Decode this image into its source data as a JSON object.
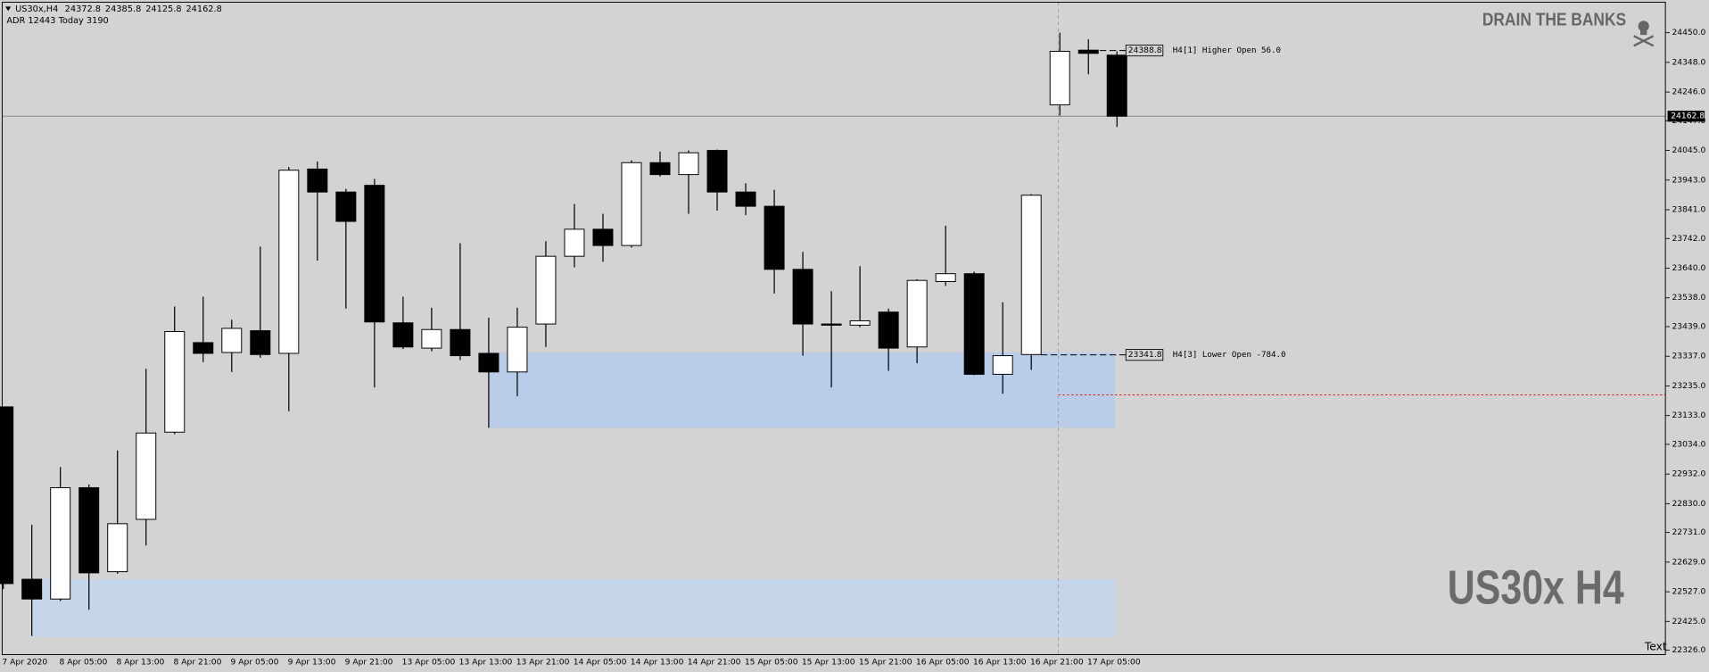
{
  "chart_data": {
    "type": "candlestick",
    "symbol": "US30x,H4",
    "header_extra": "ADR 12443  Today 3190",
    "brand": "DRAIN THE BANKS",
    "watermark": "US30x H4",
    "corner_text": "Text",
    "colors": {
      "up": "#ffffff",
      "down": "#000000",
      "outline": "#000000"
    },
    "categories": [
      "7 Apr 2020",
      null,
      "8 Apr 05:00",
      null,
      "8 Apr 13:00",
      null,
      "8 Apr 21:00",
      null,
      "9 Apr 05:00",
      null,
      "9 Apr 13:00",
      null,
      "9 Apr 21:00",
      null,
      "13 Apr 05:00",
      null,
      "13 Apr 13:00",
      null,
      "13 Apr 21:00",
      null,
      "14 Apr 05:00",
      null,
      "14 Apr 13:00",
      null,
      "14 Apr 21:00",
      null,
      "15 Apr 05:00",
      null,
      "15 Apr 13:00",
      null,
      "15 Apr 21:00",
      null,
      "16 Apr 05:00",
      null,
      "16 Apr 13:00",
      null,
      "16 Apr 21:00",
      null,
      "17 Apr 05:00",
      null
    ],
    "open": [
      23163,
      22570,
      22502,
      22885,
      22596,
      22776,
      23076,
      23384,
      23350,
      23425,
      23347,
      23981,
      23902,
      23925,
      23452,
      23365,
      23429,
      23347,
      23283,
      23448,
      23681,
      23774,
      23718,
      24003,
      23962,
      24045,
      23902,
      23853,
      23636,
      23448,
      23444,
      23489,
      23369,
      23594,
      23621,
      23275,
      23343,
      24202,
      24390,
      24372.8
    ],
    "high": [
      23163,
      22757,
      22956,
      22896,
      23013,
      23294,
      23508,
      23542,
      23463,
      23714,
      23988,
      24007,
      23913,
      23947,
      23542,
      23504,
      23726,
      23470,
      23504,
      23733,
      23861,
      23827,
      24011,
      24041,
      24045,
      24048,
      23932,
      23910,
      23696,
      23561,
      23647,
      23501,
      23602,
      23786,
      23628,
      23523,
      23895,
      24450,
      24427,
      24385.8
    ],
    "low": [
      22536,
      22375,
      22495,
      22465,
      22589,
      22686,
      23069,
      23317,
      23283,
      23332,
      23148,
      23666,
      23501,
      23230,
      23362,
      23354,
      23324,
      23091,
      23200,
      23369,
      23643,
      23662,
      23711,
      23955,
      23827,
      23838,
      23823,
      23553,
      23339,
      23230,
      23437,
      23287,
      23313,
      23579,
      23272,
      23208,
      23290,
      24165,
      24307,
      24125.8
    ],
    "close": [
      22555,
      22502,
      22885,
      22592,
      22761,
      23073,
      23422,
      23347,
      23433,
      23343,
      23977,
      23902,
      23801,
      23455,
      23369,
      23429,
      23339,
      23283,
      23437,
      23681,
      23774,
      23718,
      24003,
      23962,
      24037,
      23902,
      23853,
      23636,
      23448,
      23444,
      23459,
      23365,
      23598,
      23621,
      23275,
      23339,
      23891,
      24386,
      24379,
      24162.8
    ],
    "ylim": [
      22311,
      24555
    ],
    "yticks": [
      {
        "value": 24450,
        "label": "24450.0"
      },
      {
        "value": 24348,
        "label": "24348.0"
      },
      {
        "value": 24246,
        "label": "24246.0"
      },
      {
        "value": 24147,
        "label": "24147.0"
      },
      {
        "value": 24045,
        "label": "24045.0"
      },
      {
        "value": 23943,
        "label": "23943.0"
      },
      {
        "value": 23841,
        "label": "23841.0"
      },
      {
        "value": 23742,
        "label": "23742.0"
      },
      {
        "value": 23640,
        "label": "23640.0"
      },
      {
        "value": 23538,
        "label": "23538.0"
      },
      {
        "value": 23439,
        "label": "23439.0"
      },
      {
        "value": 23337,
        "label": "23337.0"
      },
      {
        "value": 23235,
        "label": "23235.0"
      },
      {
        "value": 23133,
        "label": "23133.0"
      },
      {
        "value": 23034,
        "label": "23034.0"
      },
      {
        "value": 22932,
        "label": "22932.0"
      },
      {
        "value": 22830,
        "label": "22830.0"
      },
      {
        "value": 22731,
        "label": "22731.0"
      },
      {
        "value": 22629,
        "label": "22629.0"
      },
      {
        "value": 22527,
        "label": "22527.0"
      },
      {
        "value": 22425,
        "label": "22425.0"
      },
      {
        "value": 22326,
        "label": "22326.0"
      }
    ],
    "levels": [
      {
        "value": 24388.8,
        "text": "H4[1] Higher Open 56.0"
      },
      {
        "value": 23341.8,
        "text": "H4[3] Lower Open -784.0"
      }
    ],
    "zones": [
      {
        "high": 23350,
        "low": 23091,
        "color": "#b9cde8"
      },
      {
        "high": 22570,
        "low": 22371,
        "color": "#c6d6ea"
      }
    ],
    "alert_line": {
      "value": 23204,
      "color": "#e02020"
    }
  }
}
